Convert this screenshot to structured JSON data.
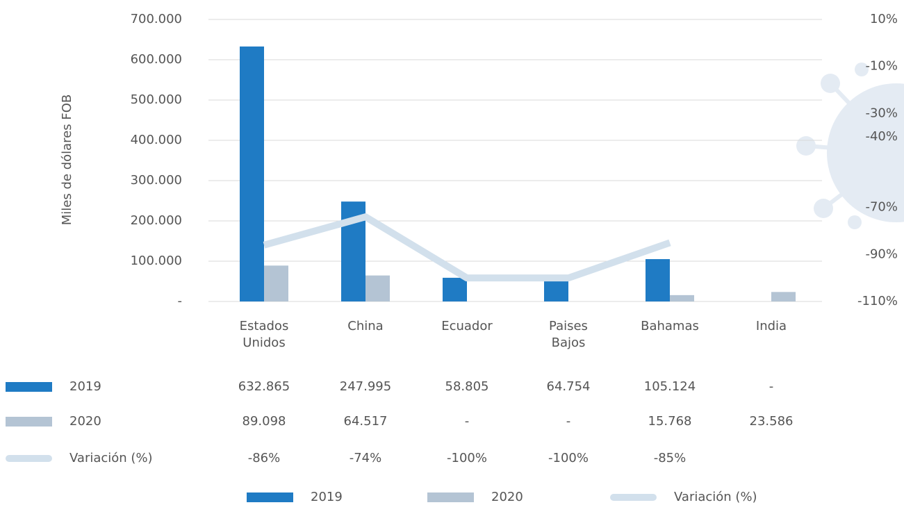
{
  "chart_data": {
    "type": "bar",
    "y_label": "Miles de dólares FOB",
    "categories": [
      "Estados Unidos",
      "China",
      "Ecuador",
      "Paises Bajos",
      "Bahamas",
      "India"
    ],
    "series": [
      {
        "name": "2019",
        "type": "bar",
        "color": "#1f7bc4",
        "values": [
          632865,
          247995,
          58805,
          64754,
          105124,
          null
        ],
        "value_labels": [
          "632.865",
          "247.995",
          "58.805",
          "64.754",
          "105.124",
          "-"
        ]
      },
      {
        "name": "2020",
        "type": "bar",
        "color": "#b4c4d4",
        "values": [
          89098,
          64517,
          null,
          null,
          15768,
          23586
        ],
        "value_labels": [
          "89.098",
          "64.517",
          "-",
          "-",
          "15.768",
          "23.586"
        ]
      },
      {
        "name": "Variación (%)",
        "type": "line",
        "axis": "y2",
        "color": "#d2e0ec",
        "values": [
          -86,
          -74,
          -100,
          -100,
          -85,
          null
        ],
        "value_labels": [
          "-86%",
          "-74%",
          "-100%",
          "-100%",
          "-85%",
          null
        ]
      }
    ],
    "ylim": [
      0,
      700000
    ],
    "yticks": [
      {
        "value": 0,
        "label": "-"
      },
      {
        "value": 100000,
        "label": "100.000"
      },
      {
        "value": 200000,
        "label": "200.000"
      },
      {
        "value": 300000,
        "label": "300.000"
      },
      {
        "value": 400000,
        "label": "400.000"
      },
      {
        "value": 500000,
        "label": "500.000"
      },
      {
        "value": 600000,
        "label": "600.000"
      },
      {
        "value": 700000,
        "label": "700.000"
      }
    ],
    "y2lim": [
      -110,
      10
    ],
    "y2ticks": [
      {
        "value": 10,
        "label": "10%"
      },
      {
        "value": -10,
        "label": "-10%"
      },
      {
        "value": -30,
        "label": "-30%"
      },
      {
        "value": -40,
        "label": "-40%"
      },
      {
        "value": -70,
        "label": "-70%"
      },
      {
        "value": -90,
        "label": "-90%"
      },
      {
        "value": -110,
        "label": "-110%"
      }
    ],
    "grid": true
  }
}
